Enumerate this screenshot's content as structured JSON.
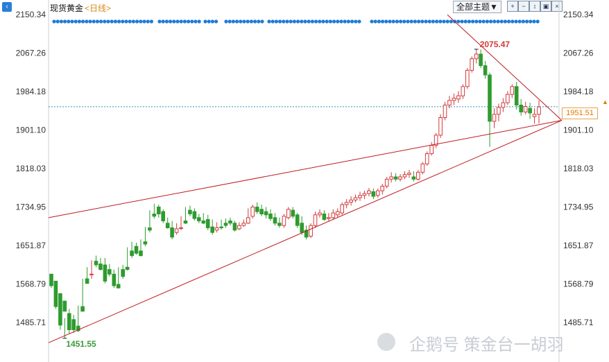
{
  "header": {
    "instrument": "现货黄金",
    "period_label": "<日线>",
    "theme_button": "全部主题▼",
    "tools": [
      "zoom-in",
      "zoom-out",
      "fit",
      "fullscreen",
      "close"
    ]
  },
  "watermark": {
    "text": "企鹅号 策金台一胡羽"
  },
  "colors": {
    "up": "#d23a3a",
    "down": "#2e9b2e",
    "trendline": "#c0181f",
    "price_line": "#2c8fb0",
    "price_tag": "#e07b00",
    "dots": "#1f7bd6"
  },
  "chart_data": {
    "type": "candlestick",
    "title": "",
    "xlabel": "",
    "ylabel": "",
    "ylim": [
      1451.55,
      2150.34
    ],
    "y_ticks": [
      "2150.34",
      "2067.26",
      "1984.18",
      "1901.10",
      "1818.03",
      "1734.95",
      "1651.87",
      "1568.79",
      "1485.71"
    ],
    "y_ticks_right": [
      "2150.34",
      "2067.26",
      "1984.18",
      "1901.10",
      "1818.03",
      "1734.95",
      "1651.87",
      "1568.79",
      "1485.71"
    ],
    "current_price": "1951.51",
    "annotations": [
      {
        "label": "2075.47",
        "value": 2075.47,
        "kind": "high"
      },
      {
        "label": "1451.55",
        "value": 1451.55,
        "kind": "low"
      }
    ],
    "candles": [
      [
        1590,
        1585,
        1565,
        1560
      ],
      [
        1575,
        1548,
        1520,
        1515
      ],
      [
        1548,
        1540,
        1480,
        1470
      ],
      [
        1532,
        1495,
        1510,
        1452
      ],
      [
        1505,
        1515,
        1470,
        1462
      ],
      [
        1492,
        1502,
        1470,
        1463
      ],
      [
        1478,
        1522,
        1468,
        1465
      ],
      [
        1520,
        1580,
        1510,
        1515
      ],
      [
        1580,
        1605,
        1570,
        1575
      ],
      [
        1590,
        1620,
        1590,
        1580
      ],
      [
        1618,
        1630,
        1610,
        1605
      ],
      [
        1612,
        1625,
        1600,
        1598
      ],
      [
        1610,
        1625,
        1575,
        1570
      ],
      [
        1600,
        1612,
        1590,
        1585
      ],
      [
        1590,
        1600,
        1565,
        1560
      ],
      [
        1568,
        1605,
        1560,
        1562
      ],
      [
        1600,
        1610,
        1585,
        1580
      ],
      [
        1605,
        1648,
        1600,
        1598
      ],
      [
        1640,
        1660,
        1630,
        1625
      ],
      [
        1650,
        1658,
        1635,
        1632
      ],
      [
        1640,
        1665,
        1630,
        1628
      ],
      [
        1660,
        1692,
        1655,
        1650
      ],
      [
        1690,
        1728,
        1685,
        1680
      ],
      [
        1720,
        1742,
        1715,
        1710
      ],
      [
        1735,
        1740,
        1720,
        1712
      ],
      [
        1725,
        1730,
        1705,
        1700
      ],
      [
        1700,
        1712,
        1690,
        1688
      ],
      [
        1690,
        1705,
        1670,
        1665
      ],
      [
        1680,
        1700,
        1688,
        1675
      ],
      [
        1690,
        1715,
        1690,
        1685
      ],
      [
        1705,
        1735,
        1700,
        1698
      ],
      [
        1728,
        1738,
        1720,
        1715
      ],
      [
        1725,
        1732,
        1710,
        1706
      ],
      [
        1712,
        1720,
        1705,
        1700
      ],
      [
        1705,
        1722,
        1700,
        1698
      ],
      [
        1708,
        1718,
        1690,
        1685
      ],
      [
        1692,
        1708,
        1680,
        1675
      ],
      [
        1685,
        1702,
        1690,
        1680
      ],
      [
        1692,
        1708,
        1690,
        1686
      ],
      [
        1700,
        1710,
        1695,
        1690
      ],
      [
        1705,
        1712,
        1700,
        1695
      ],
      [
        1700,
        1705,
        1685,
        1682
      ],
      [
        1688,
        1702,
        1695,
        1685
      ],
      [
        1695,
        1708,
        1700,
        1692
      ],
      [
        1700,
        1732,
        1712,
        1698
      ],
      [
        1715,
        1740,
        1735,
        1710
      ],
      [
        1735,
        1745,
        1725,
        1720
      ],
      [
        1730,
        1740,
        1720,
        1715
      ],
      [
        1725,
        1735,
        1718,
        1710
      ],
      [
        1720,
        1730,
        1710,
        1705
      ],
      [
        1712,
        1722,
        1700,
        1695
      ],
      [
        1700,
        1712,
        1695,
        1690
      ],
      [
        1695,
        1720,
        1715,
        1690
      ],
      [
        1712,
        1735,
        1730,
        1708
      ],
      [
        1728,
        1735,
        1715,
        1710
      ],
      [
        1718,
        1722,
        1695,
        1690
      ],
      [
        1700,
        1715,
        1680,
        1675
      ],
      [
        1685,
        1695,
        1670,
        1665
      ],
      [
        1672,
        1700,
        1695,
        1668
      ],
      [
        1695,
        1725,
        1718,
        1690
      ],
      [
        1718,
        1730,
        1722,
        1712
      ],
      [
        1720,
        1728,
        1708,
        1705
      ],
      [
        1710,
        1722,
        1712,
        1705
      ],
      [
        1712,
        1730,
        1722,
        1708
      ],
      [
        1718,
        1732,
        1725,
        1712
      ],
      [
        1722,
        1745,
        1740,
        1718
      ],
      [
        1740,
        1752,
        1745,
        1732
      ],
      [
        1745,
        1758,
        1750,
        1738
      ],
      [
        1750,
        1762,
        1755,
        1745
      ],
      [
        1755,
        1768,
        1760,
        1748
      ],
      [
        1760,
        1770,
        1764,
        1752
      ],
      [
        1764,
        1776,
        1770,
        1758
      ],
      [
        1768,
        1775,
        1758,
        1752
      ],
      [
        1760,
        1775,
        1770,
        1755
      ],
      [
        1770,
        1785,
        1780,
        1762
      ],
      [
        1780,
        1800,
        1795,
        1775
      ],
      [
        1795,
        1810,
        1800,
        1788
      ],
      [
        1800,
        1808,
        1795,
        1790
      ],
      [
        1795,
        1806,
        1800,
        1790
      ],
      [
        1800,
        1812,
        1805,
        1795
      ],
      [
        1805,
        1815,
        1808,
        1798
      ],
      [
        1800,
        1812,
        1795,
        1790
      ],
      [
        1795,
        1815,
        1810,
        1792
      ],
      [
        1810,
        1832,
        1828,
        1805
      ],
      [
        1828,
        1855,
        1850,
        1824
      ],
      [
        1850,
        1875,
        1868,
        1846
      ],
      [
        1868,
        1895,
        1890,
        1862
      ],
      [
        1890,
        1935,
        1928,
        1884
      ],
      [
        1928,
        1962,
        1955,
        1922
      ],
      [
        1955,
        1975,
        1965,
        1948
      ],
      [
        1965,
        1980,
        1970,
        1955
      ],
      [
        1968,
        1985,
        1975,
        1960
      ],
      [
        1975,
        2000,
        1995,
        1968
      ],
      [
        1995,
        2035,
        2030,
        1990
      ],
      [
        2030,
        2060,
        2055,
        2025
      ],
      [
        2055,
        2075,
        2065,
        2045
      ],
      [
        2065,
        2075,
        2040,
        2035
      ],
      [
        2040,
        2050,
        2020,
        2012
      ],
      [
        2020,
        2025,
        1920,
        1865
      ],
      [
        1920,
        1948,
        1935,
        1905
      ],
      [
        1935,
        1958,
        1950,
        1920
      ],
      [
        1950,
        1970,
        1960,
        1940
      ],
      [
        1960,
        1985,
        1978,
        1955
      ],
      [
        1978,
        2000,
        1995,
        1970
      ],
      [
        1995,
        2005,
        1955,
        1945
      ],
      [
        1955,
        1968,
        1940,
        1932
      ],
      [
        1940,
        1962,
        1952,
        1935
      ],
      [
        1948,
        1960,
        1938,
        1925
      ],
      [
        1930,
        1948,
        1935,
        1915
      ],
      [
        1935,
        1965,
        1951,
        1915
      ]
    ]
  }
}
